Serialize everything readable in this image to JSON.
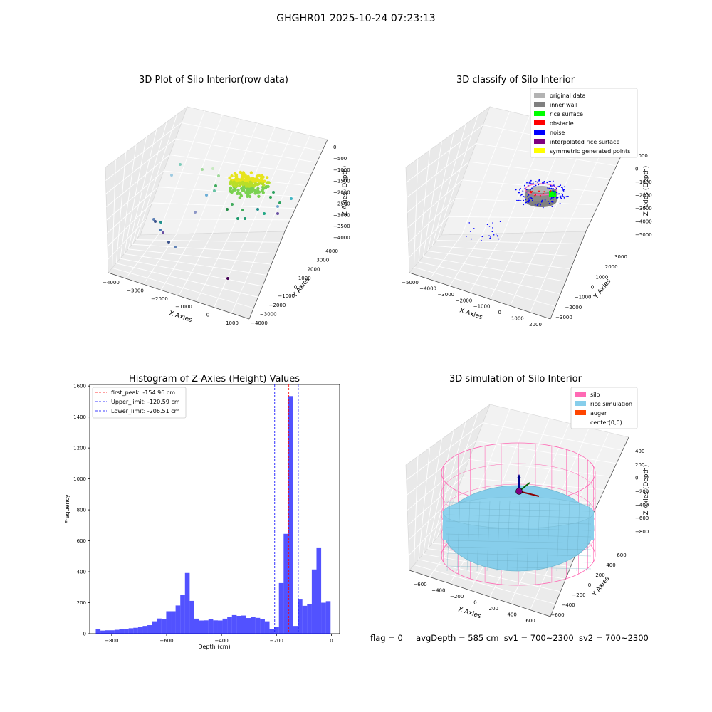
{
  "suptitle": "GHGHR01 2025-10-24 07:23:13",
  "footer": {
    "flag": "flag = 0",
    "avg_depth": "avgDepth = 585 cm",
    "sv1": "sv1 = 700~2300",
    "sv2": "sv2 = 700~2300"
  },
  "chart_data": [
    {
      "type": "scatter",
      "subtype": "3d",
      "title": "3D Plot of Silo Interior(row data)",
      "xlabel": "X Axies",
      "ylabel": "Y Axies",
      "zlabel": "Z Axies (Depth)",
      "x_ticks": [
        "−4000",
        "−3000",
        "−2000",
        "−1000",
        "0",
        "1000"
      ],
      "y_ticks": [
        "−4000",
        "−3000",
        "−2000",
        "−1000",
        "0",
        "1000",
        "2000",
        "3000",
        "4000"
      ],
      "z_ticks": [
        "0",
        "−500",
        "−1000",
        "−1500",
        "−2000",
        "−2500",
        "−3000",
        "−3500",
        "−4000"
      ],
      "xlim": [
        -4000,
        1200
      ],
      "ylim": [
        -4000,
        4000
      ],
      "zlim": [
        -4200,
        200
      ],
      "colormap": "viridis",
      "grid": true
    },
    {
      "type": "scatter",
      "subtype": "3d",
      "title": "3D classify of Silo Interior",
      "xlabel": "X Axies",
      "ylabel": "Y Axies",
      "zlabel": "Z Axies (Depth)",
      "x_ticks": [
        "−5000",
        "−4000",
        "−3000",
        "−2000",
        "−1000",
        "0",
        "1000",
        "2000"
      ],
      "y_ticks": [
        "−3000",
        "−2000",
        "−1000",
        "0",
        "1000",
        "2000",
        "3000"
      ],
      "z_ticks": [
        "1000",
        "0",
        "−1000",
        "−2000",
        "−3000",
        "−4000",
        "−5000"
      ],
      "legend_position": "top-right",
      "legend": [
        {
          "label": "original data",
          "color": "#b3b3b3"
        },
        {
          "label": "inner wall",
          "color": "#808080"
        },
        {
          "label": "rice surface",
          "color": "#00ff00"
        },
        {
          "label": "obstacle",
          "color": "#ff0000"
        },
        {
          "label": "noise",
          "color": "#0000ff"
        },
        {
          "label": "interpolated rice surface",
          "color": "#800080"
        },
        {
          "label": "symmetric generated points",
          "color": "#ffff00"
        }
      ],
      "grid": true
    },
    {
      "type": "bar",
      "subtype": "histogram",
      "title": "Histogram of Z-Axies (Height) Values",
      "xlabel": "Depth (cm)",
      "ylabel": "Frequency",
      "xlim": [
        -880,
        30
      ],
      "ylim": [
        0,
        1610
      ],
      "x_ticks": [
        "−800",
        "−600",
        "−400",
        "−200",
        "0"
      ],
      "y_ticks": [
        "0",
        "200",
        "400",
        "600",
        "800",
        "1000",
        "1200",
        "1400",
        "1600"
      ],
      "bin_start": -858,
      "bin_width": 17.1,
      "values": [
        28,
        20,
        22,
        22,
        25,
        28,
        30,
        35,
        38,
        42,
        50,
        55,
        80,
        98,
        95,
        145,
        145,
        182,
        253,
        392,
        212,
        97,
        85,
        86,
        92,
        86,
        85,
        97,
        108,
        120,
        115,
        117,
        101,
        107,
        102,
        92,
        80,
        30,
        43,
        327,
        645,
        1535,
        50,
        225,
        180,
        190,
        415,
        557,
        200,
        210
      ],
      "color": "#0000ff",
      "vlines": [
        {
          "label": "first_peak: -154.96 cm",
          "x": -154.96,
          "color": "#ff0000"
        },
        {
          "label": "Upper_limit: -120.59 cm",
          "x": -120.59,
          "color": "#0000ff"
        },
        {
          "label": "Lower_limit: -206.51 cm",
          "x": -206.51,
          "color": "#0000ff"
        }
      ],
      "legend_position": "top-left",
      "grid": false
    },
    {
      "type": "scatter",
      "subtype": "3d-surface",
      "title": "3D simulation of Silo Interior",
      "xlabel": "X Axies",
      "ylabel": "Y Axies",
      "zlabel": "Z Axies (Depth)",
      "x_ticks": [
        "−600",
        "−400",
        "−200",
        "0",
        "200",
        "400",
        "600"
      ],
      "y_ticks": [
        "−600",
        "−400",
        "−200",
        "0",
        "200",
        "400",
        "600"
      ],
      "z_ticks": [
        "400",
        "200",
        "0",
        "−200",
        "−400",
        "−600",
        "−800"
      ],
      "legend_position": "top-right",
      "legend": [
        {
          "label": "silo",
          "color": "#ff69b4"
        },
        {
          "label": "rice simulation",
          "color": "#87ceeb"
        },
        {
          "label": "auger",
          "color": "#ff4500"
        },
        {
          "label": "center(0,0)",
          "color": "#ffffff"
        }
      ],
      "grid": true
    }
  ]
}
